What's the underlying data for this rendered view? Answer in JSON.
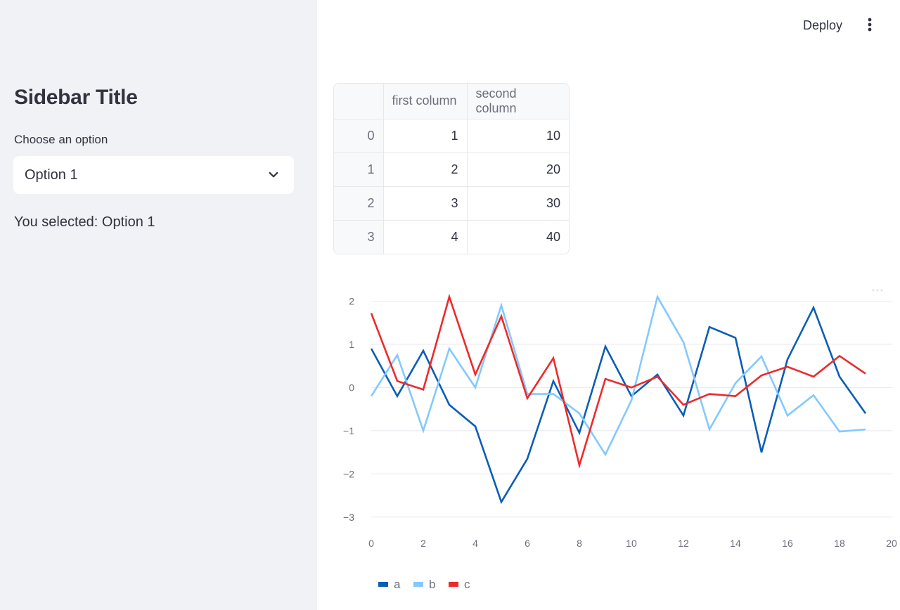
{
  "sidebar": {
    "title": "Sidebar Title",
    "select_label": "Choose an option",
    "select_value": "Option 1",
    "selected_prefix": "You selected: ",
    "selected_value": "Option 1"
  },
  "header": {
    "deploy_label": "Deploy",
    "menu_icon": "kebab-menu-icon"
  },
  "table": {
    "columns": [
      "first column",
      "second column"
    ],
    "rows": [
      {
        "index": "0",
        "first": "1",
        "second": "10"
      },
      {
        "index": "1",
        "first": "2",
        "second": "20"
      },
      {
        "index": "2",
        "first": "3",
        "second": "30"
      },
      {
        "index": "3",
        "first": "4",
        "second": "40"
      }
    ]
  },
  "chart_data": {
    "type": "line",
    "title": "",
    "xlabel": "",
    "ylabel": "",
    "xlim": [
      0,
      20
    ],
    "ylim": [
      -3.15,
      2.3
    ],
    "xticks": [
      0,
      2,
      4,
      6,
      8,
      10,
      12,
      14,
      16,
      18,
      20
    ],
    "yticks": [
      2,
      1,
      0,
      -1,
      -2,
      -3
    ],
    "ytick_labels": [
      "2",
      "1",
      "0",
      "−1",
      "−2",
      "−3"
    ],
    "x": [
      0,
      1,
      2,
      3,
      4,
      5,
      6,
      7,
      8,
      9,
      10,
      11,
      12,
      13,
      14,
      15,
      16,
      17,
      18,
      19
    ],
    "series": [
      {
        "name": "a",
        "color": "#0b5db5",
        "values": [
          0.9,
          -0.2,
          0.85,
          -0.4,
          -0.9,
          -2.65,
          -1.65,
          0.15,
          -1.05,
          0.95,
          -0.2,
          0.3,
          -0.65,
          1.4,
          1.15,
          -1.5,
          0.65,
          1.85,
          0.25,
          -0.6
        ]
      },
      {
        "name": "b",
        "color": "#83c9ff",
        "values": [
          -0.2,
          0.75,
          -1.0,
          0.9,
          0.0,
          1.9,
          -0.15,
          -0.15,
          -0.6,
          -1.55,
          -0.3,
          2.1,
          1.05,
          -0.97,
          0.1,
          0.72,
          -0.65,
          -0.18,
          -1.02,
          -0.97
        ]
      },
      {
        "name": "c",
        "color": "#ed2a2a",
        "values": [
          1.72,
          0.15,
          -0.05,
          2.1,
          0.3,
          1.65,
          -0.25,
          0.68,
          -1.8,
          0.2,
          0.0,
          0.25,
          -0.4,
          -0.15,
          -0.2,
          0.28,
          0.48,
          0.25,
          0.73,
          0.32
        ]
      }
    ],
    "legend": "bottom-left"
  }
}
